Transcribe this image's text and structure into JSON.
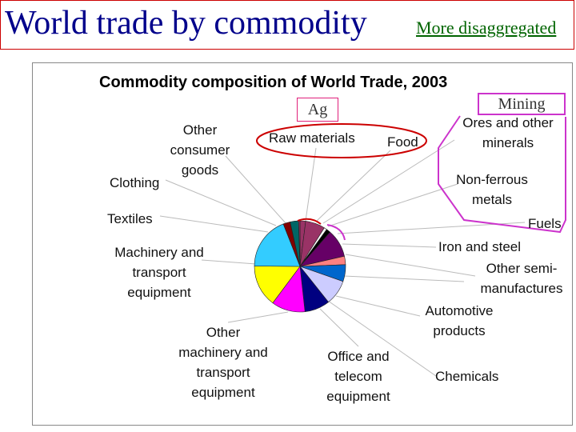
{
  "header": {
    "title": "World trade by commodity",
    "link": "More disaggregated"
  },
  "annotations": {
    "ag": "Ag",
    "mining": "Mining"
  },
  "colors": {
    "title_color": "#00008b",
    "link_color": "#006400",
    "ag_circle": "#cc0000",
    "mining_box": "#cc33cc"
  },
  "chart_data": {
    "type": "pie",
    "title": "Commodity composition of World Trade, 2003",
    "slices": [
      {
        "label": "Raw materials",
        "value": 2,
        "color": "#993366"
      },
      {
        "label": "Food",
        "value": 7,
        "color": "#993366"
      },
      {
        "label": "Ores and other minerals",
        "value": 1,
        "color": "#ffffff"
      },
      {
        "label": "Non-ferrous metals",
        "value": 1.5,
        "color": "#000000"
      },
      {
        "label": "Fuels",
        "value": 10,
        "color": "#660066"
      },
      {
        "label": "Iron and steel",
        "value": 3,
        "color": "#ff8080"
      },
      {
        "label": "Other semi-manufactures",
        "value": 6,
        "color": "#0066cc"
      },
      {
        "label": "Chemicals",
        "value": 9,
        "color": "#ccccff"
      },
      {
        "label": "Automotive products",
        "value": 9,
        "color": "#000080"
      },
      {
        "label": "Office and telecom equipment",
        "value": 12,
        "color": "#ff00ff"
      },
      {
        "label": "Other machinery and transport equipment",
        "value": 15,
        "color": "#ffff00"
      },
      {
        "label": "Machinery and transport equipment",
        "value": 19,
        "color": "#33ccff"
      },
      {
        "label": "Textiles",
        "value": 2.5,
        "color": "#800000"
      },
      {
        "label": "Clothing",
        "value": 3,
        "color": "#006666"
      },
      {
        "label": "Other consumer goods",
        "value": 0.5,
        "color": "#993366"
      }
    ]
  },
  "labels": {
    "other_consumer": [
      "Other",
      "consumer",
      "goods"
    ],
    "raw_materials": "Raw materials",
    "food": "Food",
    "ores": [
      "Ores and other",
      "minerals"
    ],
    "nonferrous": [
      "Non-ferrous",
      "metals"
    ],
    "fuels": "Fuels",
    "iron": "Iron and steel",
    "semi": [
      "Other semi-",
      "manufactures"
    ],
    "automotive": [
      "Automotive",
      "products"
    ],
    "chemicals": "Chemicals",
    "office": [
      "Office and",
      "telecom",
      "equipment"
    ],
    "other_machinery": [
      "Other",
      "machinery and",
      "transport",
      "equipment"
    ],
    "machinery": [
      "Machinery and",
      "transport",
      "equipment"
    ],
    "textiles": "Textiles",
    "clothing": "Clothing"
  }
}
